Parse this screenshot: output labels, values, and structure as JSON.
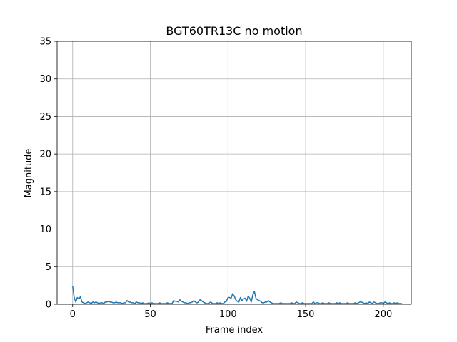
{
  "chart_data": {
    "type": "line",
    "title": "BGT60TR13C no motion",
    "xlabel": "Frame index",
    "ylabel": "Magnitude",
    "xlim": [
      -10,
      218
    ],
    "ylim": [
      0,
      35
    ],
    "x_ticks": [
      0,
      50,
      100,
      150,
      200
    ],
    "y_ticks": [
      0,
      5,
      10,
      15,
      20,
      25,
      30,
      35
    ],
    "grid": true,
    "colors": {
      "line": "#1f77b4",
      "grid": "#b0b0b0",
      "axes": "#000000"
    },
    "series": [
      {
        "values": [
          2.4,
          0.9,
          0.3,
          0.9,
          0.7,
          1.0,
          0.3,
          0.2,
          0.1,
          0.2,
          0.3,
          0.2,
          0.1,
          0.3,
          0.2,
          0.3,
          0.2,
          0.1,
          0.2,
          0.2,
          0.1,
          0.3,
          0.3,
          0.4,
          0.3,
          0.3,
          0.2,
          0.2,
          0.3,
          0.2,
          0.2,
          0.2,
          0.1,
          0.2,
          0.2,
          0.5,
          0.3,
          0.3,
          0.2,
          0.2,
          0.1,
          0.3,
          0.2,
          0.2,
          0.1,
          0.2,
          0.1,
          0.1,
          0.1,
          0.2,
          0.1,
          0.2,
          0.1,
          0.1,
          0.1,
          0.1,
          0.2,
          0.1,
          0.1,
          0.1,
          0.1,
          0.2,
          0.1,
          0.1,
          0.1,
          0.5,
          0.4,
          0.4,
          0.3,
          0.6,
          0.4,
          0.3,
          0.2,
          0.2,
          0.1,
          0.2,
          0.2,
          0.3,
          0.5,
          0.3,
          0.2,
          0.3,
          0.6,
          0.5,
          0.3,
          0.2,
          0.1,
          0.1,
          0.2,
          0.3,
          0.1,
          0.1,
          0.1,
          0.2,
          0.1,
          0.2,
          0.1,
          0.1,
          0.3,
          0.4,
          0.9,
          0.9,
          0.8,
          1.4,
          1.1,
          0.6,
          0.4,
          0.3,
          0.9,
          0.5,
          0.7,
          0.8,
          0.4,
          1.1,
          0.8,
          0.3,
          1.3,
          1.7,
          0.8,
          0.6,
          0.5,
          0.4,
          0.2,
          0.2,
          0.3,
          0.3,
          0.5,
          0.3,
          0.2,
          0.1,
          0.1,
          0.1,
          0.1,
          0.1,
          0.2,
          0.1,
          0.1,
          0.1,
          0.1,
          0.1,
          0.1,
          0.2,
          0.1,
          0.1,
          0.3,
          0.2,
          0.1,
          0.1,
          0.2,
          0.1,
          0.1,
          0.1,
          0.1,
          0.1,
          0.1,
          0.3,
          0.1,
          0.2,
          0.2,
          0.1,
          0.1,
          0.2,
          0.1,
          0.1,
          0.1,
          0.2,
          0.1,
          0.1,
          0.1,
          0.1,
          0.2,
          0.1,
          0.2,
          0.1,
          0.1,
          0.1,
          0.1,
          0.2,
          0.1,
          0.1,
          0.1,
          0.1,
          0.2,
          0.1,
          0.2,
          0.3,
          0.3,
          0.2,
          0.1,
          0.2,
          0.1,
          0.3,
          0.2,
          0.1,
          0.3,
          0.2,
          0.1,
          0.1,
          0.2,
          0.2,
          0.1,
          0.3,
          0.2,
          0.1,
          0.2,
          0.1,
          0.1,
          0.2,
          0.1,
          0.2,
          0.1,
          0.1,
          0.1
        ]
      }
    ]
  }
}
